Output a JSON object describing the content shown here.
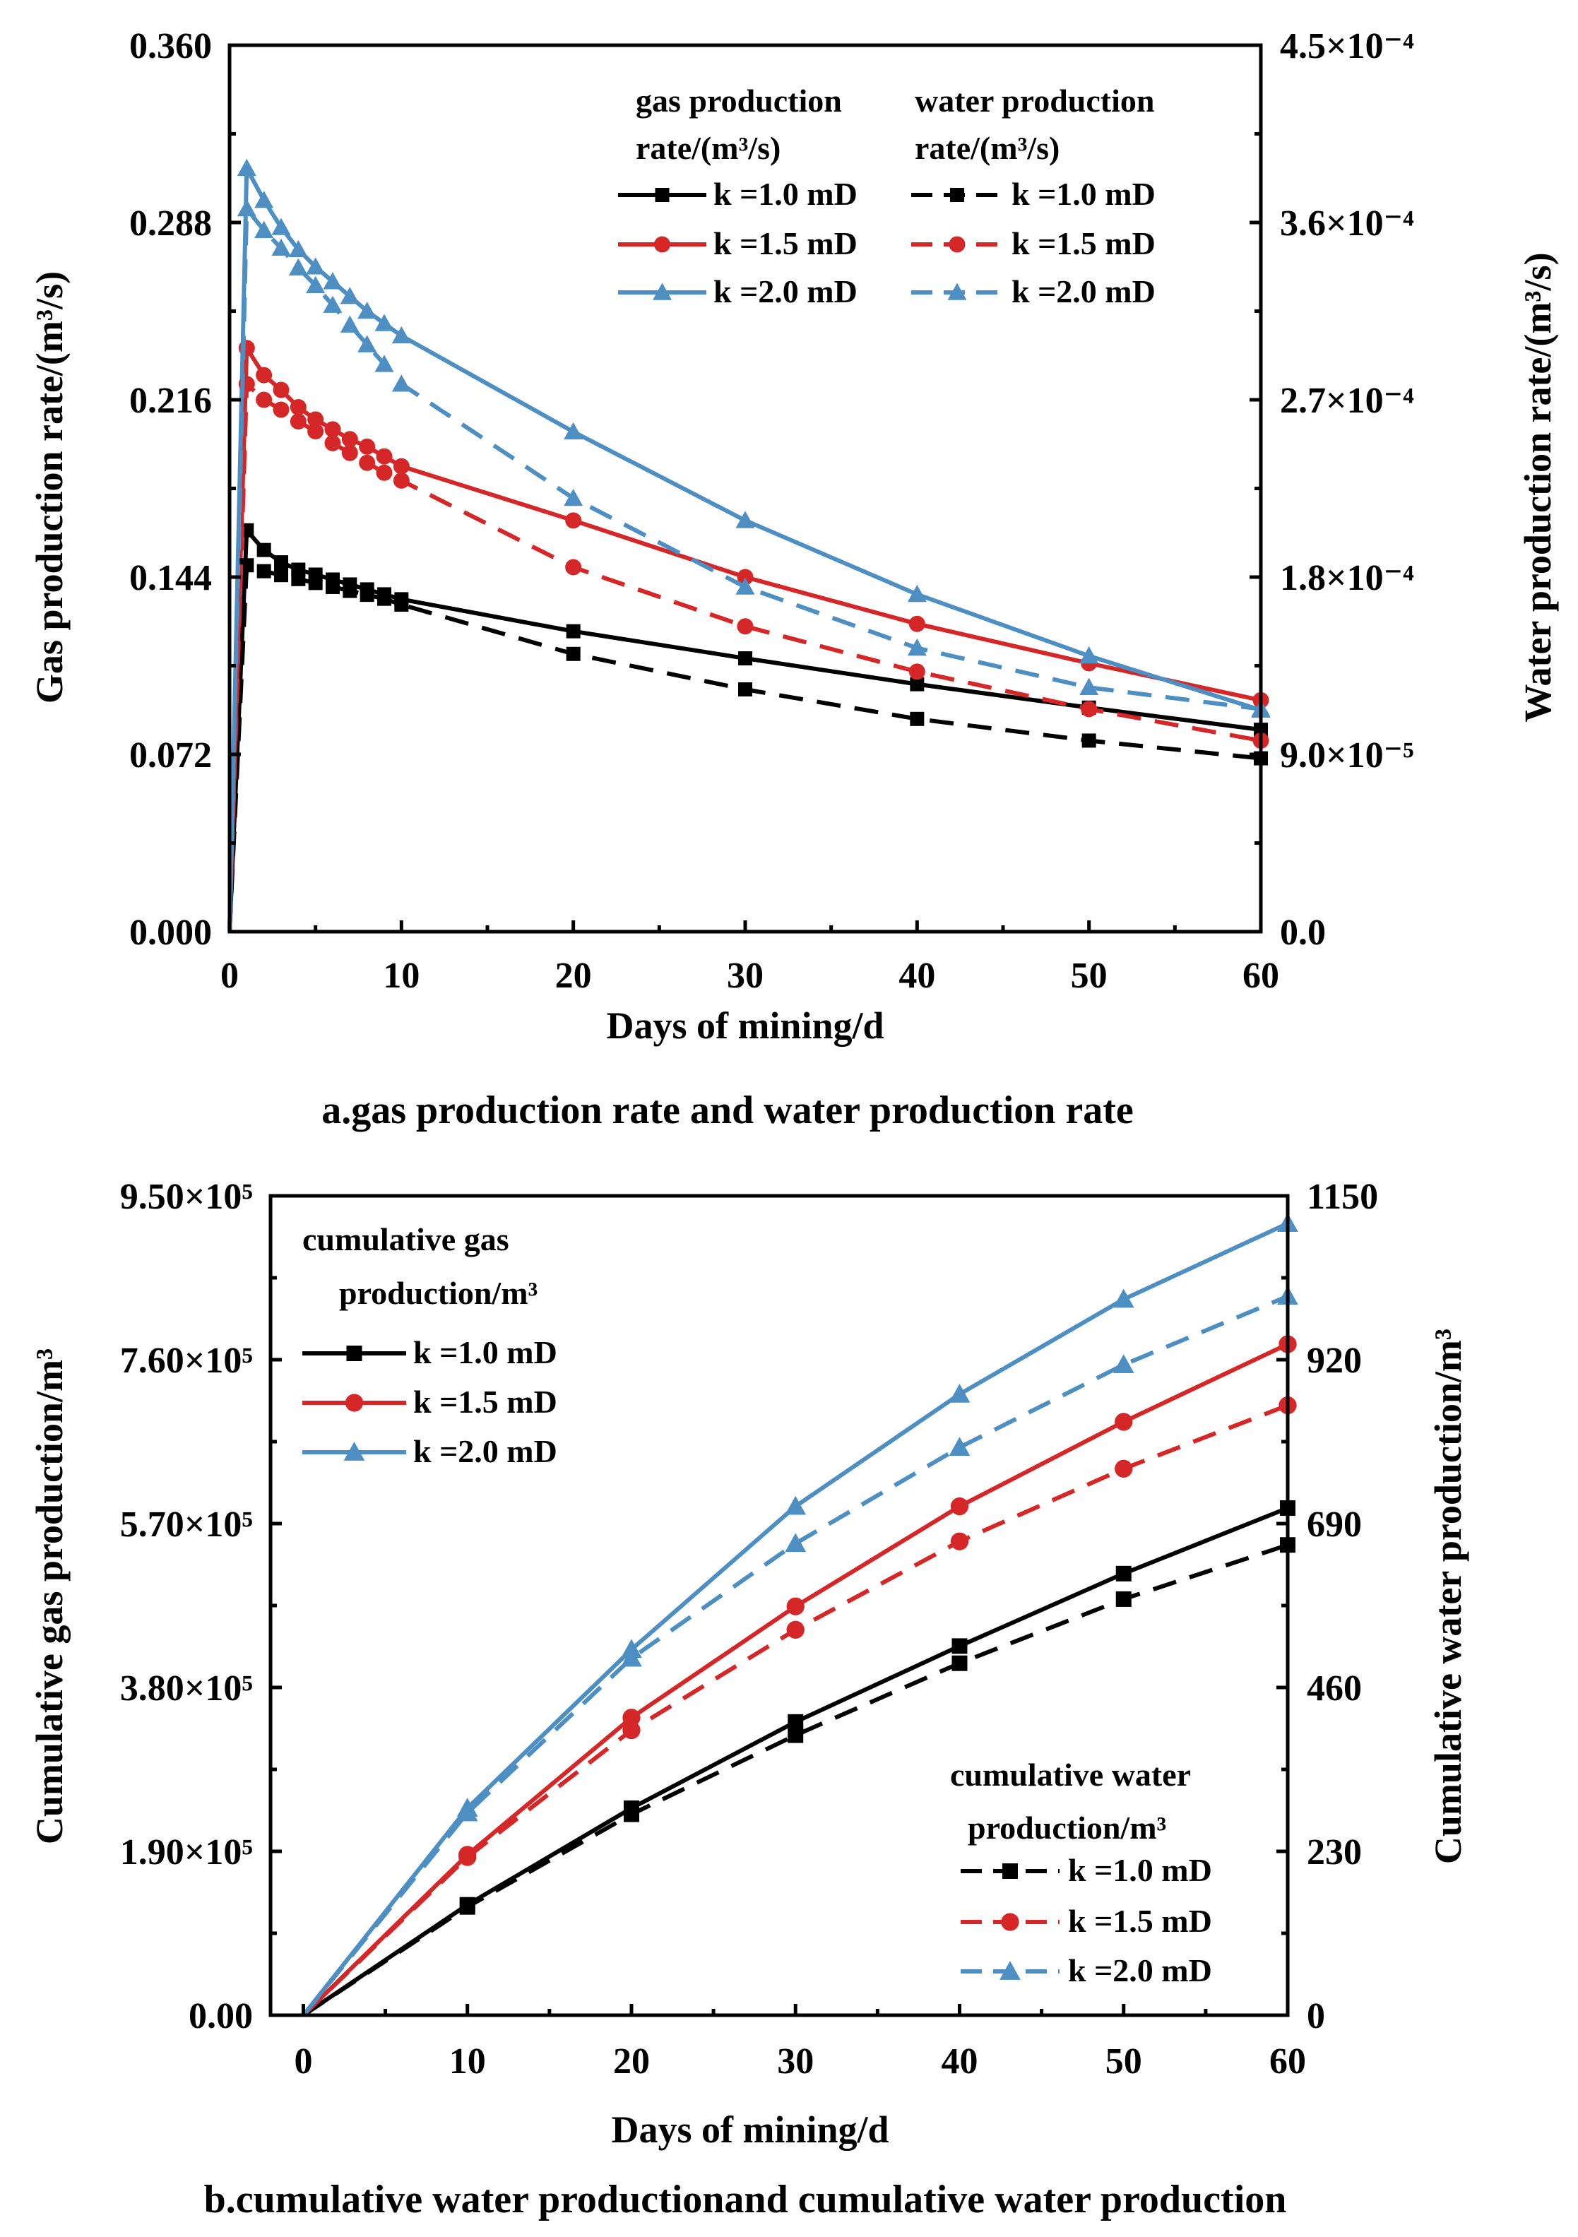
{
  "chart_data": [
    {
      "id": "a",
      "type": "line",
      "caption": "a.gas production rate and water production rate",
      "xlabel": "Days of mining/d",
      "ylabel_left": "Gas production rate/(m³/s)",
      "ylabel_right": "Water production rate/(m³/s)",
      "xlim": [
        0,
        60
      ],
      "ylim_left": [
        0,
        0.36
      ],
      "ylim_right": [
        0,
        0.00045
      ],
      "x_ticks": [
        "0",
        "10",
        "20",
        "30",
        "40",
        "50",
        "60"
      ],
      "y_ticks_left": [
        "0.000",
        "0.072",
        "0.144",
        "0.216",
        "0.288",
        "0.360"
      ],
      "y_ticks_right": [
        "0.0",
        "9.0×10⁻⁵",
        "1.8×10⁻⁴",
        "2.7×10⁻⁴",
        "3.6×10⁻⁴",
        "4.5×10⁻⁴"
      ],
      "legend_gas_title": [
        "gas production",
        "rate/(m³/s)"
      ],
      "legend_water_title": [
        "water production",
        "rate/(m³/s)"
      ],
      "x": [
        0,
        1,
        2,
        3,
        4,
        5,
        6,
        7,
        8,
        9,
        10,
        20,
        30,
        40,
        50,
        60
      ],
      "series": [
        {
          "name": "k =1.0 mD",
          "group": "gas",
          "axis": "left",
          "color": "#000000",
          "marker": "square",
          "dash": false,
          "values": [
            0,
            0.163,
            0.155,
            0.15,
            0.147,
            0.145,
            0.143,
            0.141,
            0.139,
            0.137,
            0.135,
            0.122,
            0.111,
            0.1005,
            0.091,
            0.082
          ]
        },
        {
          "name": "k =1.5 mD",
          "group": "gas",
          "axis": "left",
          "color": "#d62728",
          "marker": "circle",
          "dash": false,
          "values": [
            0,
            0.237,
            0.226,
            0.22,
            0.213,
            0.208,
            0.204,
            0.2,
            0.197,
            0.193,
            0.189,
            0.167,
            0.144,
            0.125,
            0.109,
            0.094
          ]
        },
        {
          "name": "k =2.0 mD",
          "group": "gas",
          "axis": "left",
          "color": "#4d8fc3",
          "marker": "triangle",
          "dash": false,
          "values": [
            0,
            0.31,
            0.297,
            0.286,
            0.277,
            0.27,
            0.264,
            0.258,
            0.252,
            0.247,
            0.242,
            0.203,
            0.167,
            0.137,
            0.112,
            0.09
          ]
        },
        {
          "name": "k =1.0 mD",
          "group": "water",
          "axis": "right",
          "color": "#000000",
          "marker": "square",
          "dash": true,
          "values": [
            0,
            0.000186,
            0.000183,
            0.000181,
            0.000179,
            0.000177,
            0.000175,
            0.000173,
            0.000171,
            0.000169,
            0.000166,
            0.000141,
            0.000123,
            0.000108,
            9.7e-05,
            8.8e-05
          ]
        },
        {
          "name": "k =1.5 mD",
          "group": "water",
          "axis": "right",
          "color": "#d62728",
          "marker": "circle",
          "dash": true,
          "values": [
            0,
            0.000278,
            0.00027,
            0.000265,
            0.000259,
            0.000254,
            0.000248,
            0.000243,
            0.000238,
            0.000233,
            0.000229,
            0.000185,
            0.000155,
            0.000132,
            0.000113,
            9.7e-05
          ]
        },
        {
          "name": "k =2.0 mD",
          "group": "water",
          "axis": "right",
          "color": "#4d8fc3",
          "marker": "triangle",
          "dash": true,
          "values": [
            0,
            0.000367,
            0.000356,
            0.000347,
            0.000337,
            0.000328,
            0.000318,
            0.000308,
            0.000298,
            0.000288,
            0.000278,
            0.00022,
            0.000175,
            0.000144,
            0.000124,
            0.000113
          ]
        }
      ]
    },
    {
      "id": "b",
      "type": "line",
      "caption": "b.cumulative water productionand cumulative water production",
      "xlabel": "Days of mining/d",
      "ylabel_left": "Cumulative gas production/m³",
      "ylabel_right": "Cumulative water production/m³",
      "xlim": [
        -2,
        60
      ],
      "ylim_left": [
        0,
        950000
      ],
      "ylim_right": [
        0,
        1150
      ],
      "x_ticks": [
        "0",
        "10",
        "20",
        "30",
        "40",
        "50",
        "60"
      ],
      "y_ticks_left": [
        "0.00",
        "1.90×10⁵",
        "3.80×10⁵",
        "5.70×10⁵",
        "7.60×10⁵",
        "9.50×10⁵"
      ],
      "y_ticks_right": [
        "0",
        "230",
        "460",
        "690",
        "920",
        "1150"
      ],
      "legend_gas_title": [
        "cumulative gas",
        "production/m³"
      ],
      "legend_water_title": [
        "cumulative water",
        "production/m³"
      ],
      "x": [
        0,
        10,
        20,
        30,
        40,
        50,
        60
      ],
      "series": [
        {
          "name": "k =1.0 mD",
          "group": "gas",
          "axis": "left",
          "color": "#000000",
          "marker": "square",
          "dash": false,
          "values": [
            0,
            128000,
            240000,
            340000,
            428000,
            512000,
            588000
          ]
        },
        {
          "name": "k =1.5 mD",
          "group": "gas",
          "axis": "left",
          "color": "#d62728",
          "marker": "circle",
          "dash": false,
          "values": [
            0,
            186000,
            345000,
            474000,
            590000,
            688000,
            778000
          ]
        },
        {
          "name": "k =2.0 mD",
          "group": "gas",
          "axis": "left",
          "color": "#4d8fc3",
          "marker": "triangle",
          "dash": false,
          "values": [
            0,
            240000,
            424000,
            590000,
            720000,
            830000,
            918000
          ]
        },
        {
          "name": "k =1.0 mD",
          "group": "water",
          "axis": "right",
          "color": "#000000",
          "marker": "square",
          "dash": true,
          "values": [
            0,
            152,
            282,
            393,
            494,
            584,
            660
          ]
        },
        {
          "name": "k =1.5 mD",
          "group": "water",
          "axis": "right",
          "color": "#d62728",
          "marker": "circle",
          "dash": true,
          "values": [
            0,
            222,
            400,
            541,
            665,
            767,
            856
          ]
        },
        {
          "name": "k =2.0 mD",
          "group": "water",
          "axis": "right",
          "color": "#4d8fc3",
          "marker": "triangle",
          "dash": true,
          "values": [
            0,
            284,
            501,
            662,
            797,
            913,
            1009
          ]
        }
      ]
    }
  ]
}
